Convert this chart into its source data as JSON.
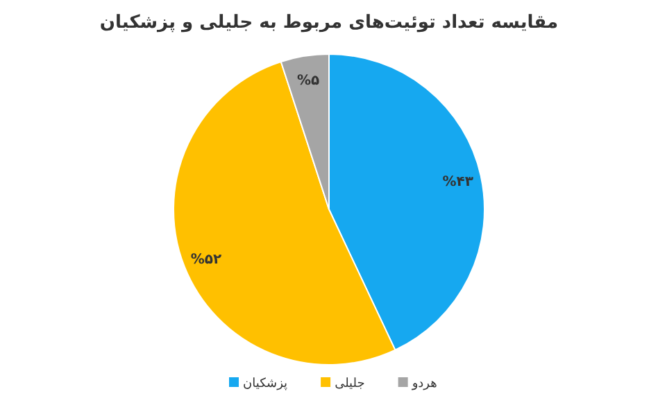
{
  "chart_data": {
    "type": "pie",
    "title": "مقایسه تعداد توئیت‌های مربوط به جلیلی و پزشکیان",
    "categories": [
      "پزشکیان",
      "جلیلی",
      "هردو"
    ],
    "values": [
      43,
      52,
      5
    ],
    "colors": [
      "#16a8f0",
      "#ffc000",
      "#a5a5a5"
    ],
    "value_labels": [
      "%۴۳",
      "%۵۲",
      "%۵"
    ],
    "legend": "bottom"
  }
}
